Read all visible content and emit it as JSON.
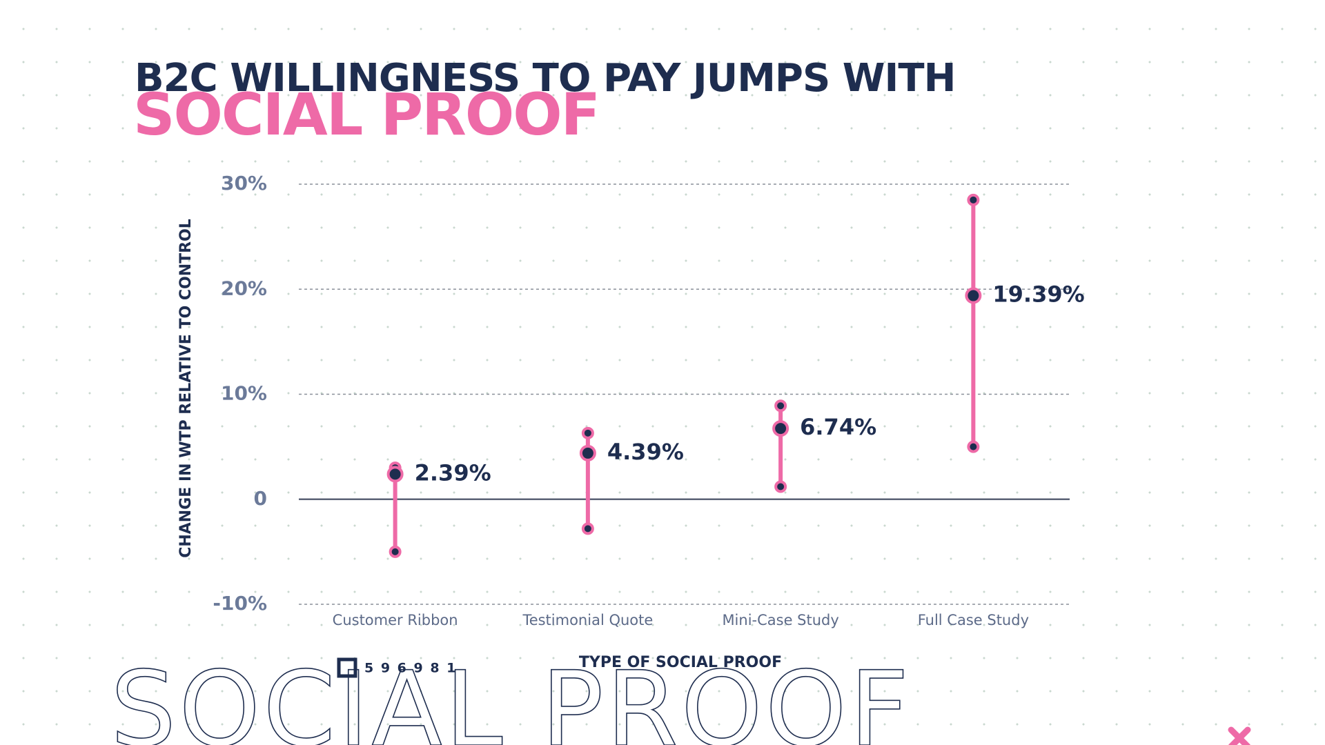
{
  "chart_data": {
    "type": "dot_range",
    "title": "B2C WILLINGNESS TO PAY JUMPS WITH",
    "subtitle": "SOCIAL PROOF",
    "y_label": "CHANGE IN WTP RELATIVE TO CONTROL",
    "x_label": "TYPE OF SOCIAL PROOF",
    "categories": [
      "Customer Ribbon",
      "Testimonial Quote",
      "Mini-Case Study",
      "Full Case Study"
    ],
    "values": [
      2.39,
      4.39,
      6.74,
      19.39
    ],
    "value_labels": [
      "2.39%",
      "4.39%",
      "6.74%",
      "19.39%"
    ],
    "lows": [
      -5.0,
      -2.8,
      1.2,
      5.0
    ],
    "highs": [
      3.0,
      6.3,
      8.9,
      28.5
    ],
    "color": "#ee6aa7",
    "point_color": "#1e2d4f",
    "ylim": [
      -10,
      30
    ],
    "yticks": [
      {
        "value": 30,
        "label": "30%"
      },
      {
        "value": 20,
        "label": "20%"
      },
      {
        "value": 10,
        "label": "10%"
      },
      0,
      {
        "value": -10,
        "label": "-10%"
      }
    ],
    "grid": true
  },
  "decor": {
    "badge": "5 9 6 9 8 1",
    "watermark": "SOCIAL PROOF"
  }
}
